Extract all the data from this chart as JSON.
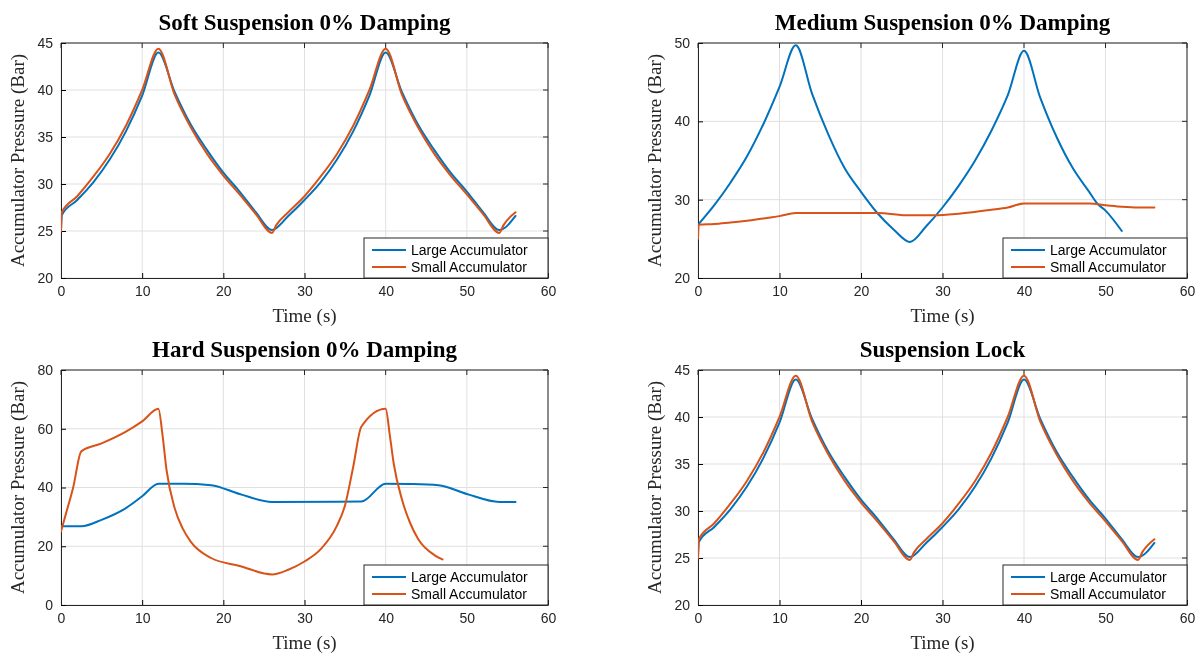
{
  "chart_data": [
    {
      "type": "line",
      "title": "Soft Suspension 0% Damping",
      "xlabel": "Time (s)",
      "ylabel": "Accumulator Pressure (Bar)",
      "xlim": [
        0,
        60
      ],
      "xticks": [
        0,
        10,
        20,
        30,
        40,
        50,
        60
      ],
      "ylim": [
        20,
        45
      ],
      "yticks": [
        20,
        25,
        30,
        35,
        40,
        45
      ],
      "grid": true,
      "legend": "bottom right",
      "line_style": "solid",
      "marker": "none",
      "series": [
        {
          "name": "Large Accumulator",
          "color": "#0072bd",
          "x": [
            0,
            0.1,
            2,
            4,
            6,
            8,
            10,
            12,
            14,
            16,
            18,
            20,
            22,
            24,
            26,
            28,
            30,
            32,
            34,
            36,
            38,
            40,
            42,
            44,
            46,
            48,
            50,
            52,
            54,
            56
          ],
          "values": [
            25,
            26.7,
            28.3,
            30.2,
            32.6,
            35.6,
            39.4,
            44.0,
            39.8,
            36.3,
            33.6,
            31.2,
            29.2,
            27.0,
            25.1,
            26.6,
            28.3,
            30.2,
            32.6,
            35.6,
            39.4,
            44.0,
            39.8,
            36.3,
            33.6,
            31.2,
            29.2,
            27.0,
            25.1,
            26.6
          ]
        },
        {
          "name": "Small Accumulator",
          "color": "#d95319",
          "x": [
            0,
            0.1,
            2,
            4,
            6,
            8,
            10,
            12,
            14,
            16,
            18,
            20,
            22,
            24,
            26,
            26.5,
            28,
            30,
            32,
            34,
            36,
            38,
            40,
            42,
            44,
            46,
            48,
            50,
            52,
            54,
            54.5,
            56
          ],
          "values": [
            25,
            27.0,
            28.7,
            30.8,
            33.2,
            36.2,
            40.0,
            44.4,
            39.5,
            36.0,
            33.2,
            30.9,
            28.9,
            26.8,
            24.8,
            25.6,
            27.0,
            28.7,
            30.8,
            33.2,
            36.2,
            40.0,
            44.4,
            39.5,
            36.0,
            33.2,
            30.9,
            28.9,
            26.8,
            24.8,
            25.6,
            27.0
          ]
        }
      ]
    },
    {
      "type": "line",
      "title": "Medium Suspension 0% Damping",
      "xlabel": "Time (s)",
      "ylabel": "Accumulator Pressure (Bar)",
      "xlim": [
        0,
        60
      ],
      "xticks": [
        0,
        10,
        20,
        30,
        40,
        50,
        60
      ],
      "ylim": [
        20,
        50
      ],
      "yticks": [
        20,
        30,
        40,
        50
      ],
      "grid": true,
      "legend": "bottom right",
      "line_style": "solid",
      "marker": "none",
      "series": [
        {
          "name": "Large Accumulator",
          "color": "#0072bd",
          "x": [
            0,
            2,
            4,
            6,
            8,
            10,
            12,
            14,
            16,
            18,
            20,
            22,
            24,
            26,
            28,
            30,
            32,
            34,
            36,
            38,
            40,
            42,
            44,
            46,
            48,
            49,
            50,
            52
          ],
          "values": [
            26.8,
            29.3,
            32.2,
            35.5,
            39.6,
            44.4,
            49.7,
            43.5,
            38.3,
            34.0,
            31.0,
            28.3,
            26.2,
            24.6,
            26.6,
            29.0,
            31.8,
            35.0,
            38.8,
            43.3,
            49.0,
            43.0,
            38.0,
            34.0,
            31.0,
            29.5,
            28.6,
            26.0
          ]
        },
        {
          "name": "Small Accumulator",
          "color": "#d95319",
          "x": [
            0,
            0.1,
            2,
            4,
            6,
            8,
            10,
            12,
            16,
            22,
            26,
            29,
            32,
            36,
            38,
            40,
            48,
            50,
            52,
            54,
            56
          ],
          "values": [
            25,
            26.8,
            26.9,
            27.1,
            27.3,
            27.6,
            27.9,
            28.3,
            28.3,
            28.3,
            28.0,
            28.0,
            28.2,
            28.7,
            29.0,
            29.5,
            29.5,
            29.3,
            29.1,
            29.0,
            29.0
          ]
        }
      ]
    },
    {
      "type": "line",
      "title": "Hard Suspension 0% Damping",
      "xlabel": "Time (s)",
      "ylabel": "Accumulator Pressure (Bar)",
      "xlim": [
        0,
        60
      ],
      "xticks": [
        0,
        10,
        20,
        30,
        40,
        50,
        60
      ],
      "ylim": [
        0,
        80
      ],
      "yticks": [
        0,
        20,
        40,
        60,
        80
      ],
      "grid": true,
      "legend": "bottom right",
      "line_style": "solid",
      "marker": "none",
      "series": [
        {
          "name": "Large Accumulator",
          "color": "#0072bd",
          "x": [
            0,
            2.5,
            5,
            8,
            10,
            12,
            15,
            18.5,
            22,
            26,
            37,
            40,
            43,
            46.5,
            50,
            54,
            56
          ],
          "values": [
            26.8,
            26.8,
            29,
            33,
            37,
            41.3,
            41.3,
            40.8,
            37.8,
            35.1,
            35.2,
            41.3,
            41.2,
            40.8,
            37.8,
            35.1,
            35.1
          ]
        },
        {
          "name": "Small Accumulator",
          "color": "#d95319",
          "x": [
            0,
            0.5,
            1.5,
            2.5,
            5,
            8,
            10,
            12,
            12.5,
            13,
            14,
            15,
            16,
            18.5,
            22,
            26,
            28,
            30,
            32,
            34,
            35,
            36,
            37,
            40,
            40.5,
            41,
            42,
            43,
            44,
            46,
            47
          ],
          "values": [
            25,
            30,
            40,
            52.3,
            55,
            59,
            62.5,
            66.8,
            58,
            46,
            33,
            26,
            21.5,
            16,
            13.3,
            10.4,
            12,
            14.8,
            19,
            27,
            34,
            47,
            60.7,
            66.8,
            58,
            48,
            36,
            28,
            22.5,
            17,
            15.5
          ]
        }
      ]
    },
    {
      "type": "line",
      "title": "Suspension Lock",
      "xlabel": "Time (s)",
      "ylabel": "Accumulator Pressure (Bar)",
      "xlim": [
        0,
        60
      ],
      "xticks": [
        0,
        10,
        20,
        30,
        40,
        50,
        60
      ],
      "ylim": [
        20,
        45
      ],
      "yticks": [
        20,
        25,
        30,
        35,
        40,
        45
      ],
      "grid": true,
      "legend": "bottom right",
      "line_style": "solid",
      "marker": "none",
      "series": [
        {
          "name": "Large Accumulator",
          "color": "#0072bd",
          "x": [
            0,
            0.1,
            2,
            4,
            6,
            8,
            10,
            12,
            14,
            16,
            18,
            20,
            22,
            24,
            26,
            28,
            30,
            32,
            34,
            36,
            38,
            40,
            42,
            44,
            46,
            48,
            50,
            52,
            54,
            56
          ],
          "values": [
            25,
            26.7,
            28.3,
            30.2,
            32.6,
            35.6,
            39.4,
            44.0,
            39.8,
            36.3,
            33.6,
            31.2,
            29.2,
            27.0,
            25.1,
            26.6,
            28.3,
            30.2,
            32.6,
            35.6,
            39.4,
            44.0,
            39.8,
            36.3,
            33.6,
            31.2,
            29.2,
            27.0,
            25.1,
            26.6
          ]
        },
        {
          "name": "Small Accumulator",
          "color": "#d95319",
          "x": [
            0,
            0.1,
            2,
            4,
            6,
            8,
            10,
            12,
            14,
            16,
            18,
            20,
            22,
            24,
            26,
            26.5,
            28,
            30,
            32,
            34,
            36,
            38,
            40,
            42,
            44,
            46,
            48,
            50,
            52,
            54,
            54.5,
            56
          ],
          "values": [
            25,
            27.0,
            28.7,
            30.8,
            33.2,
            36.2,
            40.0,
            44.4,
            39.5,
            36.0,
            33.2,
            30.9,
            28.9,
            26.8,
            24.8,
            25.6,
            27.0,
            28.7,
            30.8,
            33.2,
            36.2,
            40.0,
            44.4,
            39.5,
            36.0,
            33.2,
            30.9,
            28.9,
            26.8,
            24.8,
            25.6,
            27.0
          ]
        }
      ]
    }
  ]
}
